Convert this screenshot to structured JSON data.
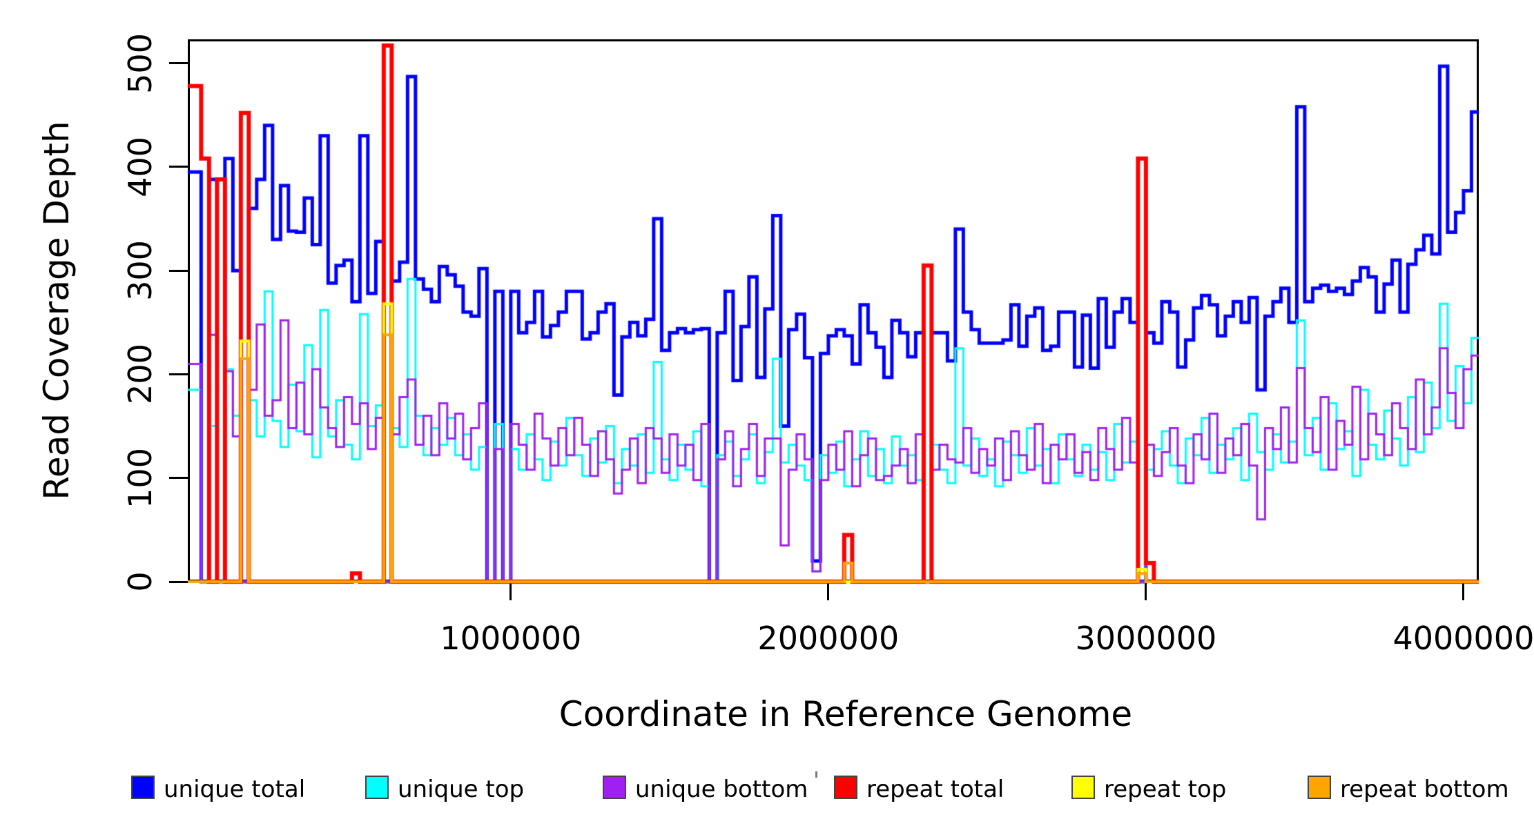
{
  "figure": {
    "y_axis": {
      "title": "Read Coverage Depth",
      "tick_labels": [
        "0",
        "100",
        "200",
        "300",
        "400",
        "500"
      ],
      "tick_values": [
        0,
        100,
        200,
        300,
        400,
        500
      ]
    },
    "x_axis": {
      "title": "Coordinate in Reference Genome",
      "tick_labels": [
        "1000000",
        "2000000",
        "3000000",
        "4000000"
      ],
      "tick_values": [
        1000000,
        2000000,
        3000000,
        4000000
      ]
    },
    "legend": {
      "items": [
        {
          "label": "unique total",
          "color": "#0000FF"
        },
        {
          "label": "unique top",
          "color": "#00FFFF"
        },
        {
          "label": "unique bottom",
          "color": "#A020F0"
        },
        {
          "label": "repeat total",
          "color": "#FF0000"
        },
        {
          "label": "repeat top",
          "color": "#FFFF00"
        },
        {
          "label": "repeat bottom",
          "color": "#FFA500"
        }
      ]
    }
  },
  "chart_data": {
    "type": "line",
    "subtype": "step",
    "title": "",
    "xlabel": "Coordinate in Reference Genome",
    "ylabel": "Read Coverage Depth",
    "xlim": [
      -17000,
      4048000
    ],
    "ylim": [
      0,
      523
    ],
    "grid": false,
    "legend_position": "bottom",
    "x_start": 0,
    "x_bin_size": 25000,
    "x_unit": "bp",
    "series": [
      {
        "name": "unique total",
        "color": "#0000FF",
        "linewidth": 5,
        "values": [
          395,
          0,
          388,
          0,
          408,
          300,
          0,
          360,
          388,
          440,
          330,
          382,
          338,
          337,
          370,
          325,
          430,
          288,
          305,
          310,
          270,
          430,
          278,
          328,
          0,
          290,
          308,
          487,
          292,
          282,
          270,
          304,
          296,
          285,
          260,
          256,
          302,
          0,
          280,
          0,
          280,
          240,
          250,
          280,
          236,
          247,
          260,
          280,
          280,
          234,
          240,
          260,
          268,
          180,
          236,
          250,
          237,
          253,
          350,
          223,
          240,
          244,
          240,
          243,
          244,
          0,
          240,
          280,
          194,
          246,
          294,
          197,
          263,
          353,
          150,
          243,
          258,
          216,
          20,
          220,
          237,
          243,
          237,
          210,
          267,
          240,
          226,
          197,
          252,
          240,
          217,
          240,
          0,
          240,
          240,
          213,
          340,
          260,
          243,
          230,
          230,
          230,
          233,
          267,
          227,
          256,
          264,
          223,
          227,
          260,
          260,
          207,
          257,
          206,
          273,
          226,
          260,
          273,
          250,
          0,
          240,
          230,
          270,
          260,
          207,
          233,
          264,
          276,
          267,
          237,
          256,
          270,
          250,
          274,
          185,
          256,
          270,
          283,
          250,
          458,
          270,
          283,
          286,
          280,
          283,
          277,
          290,
          303,
          294,
          260,
          287,
          310,
          260,
          306,
          320,
          334,
          316,
          497,
          337,
          356,
          377,
          453
        ]
      },
      {
        "name": "unique top",
        "color": "#00FFFF",
        "linewidth": 3,
        "values": [
          185,
          0,
          150,
          0,
          205,
          160,
          0,
          175,
          140,
          280,
          155,
          130,
          190,
          145,
          228,
          120,
          262,
          140,
          175,
          132,
          118,
          258,
          150,
          170,
          0,
          148,
          130,
          292,
          160,
          122,
          148,
          132,
          158,
          122,
          142,
          108,
          130,
          0,
          152,
          0,
          128,
          108,
          142,
          118,
          98,
          135,
          112,
          158,
          122,
          102,
          138,
          115,
          150,
          95,
          128,
          112,
          142,
          105,
          212,
          118,
          98,
          132,
          108,
          145,
          92,
          0,
          122,
          135,
          102,
          118,
          142,
          95,
          125,
          215,
          115,
          132,
          112,
          98,
          10,
          122,
          105,
          135,
          92,
          118,
          145,
          102,
          128,
          95,
          140,
          112,
          122,
          98,
          0,
          132,
          108,
          95,
          225,
          112,
          138,
          102,
          118,
          92,
          135,
          122,
          105,
          148,
          112,
          128,
          95,
          142,
          118,
          102,
          132,
          108,
          125,
          98,
          152,
          115,
          135,
          0,
          108,
          128,
          145,
          112,
          95,
          138,
          122,
          158,
          105,
          132,
          118,
          148,
          98,
          162,
          125,
          108,
          142,
          115,
          135,
          252,
          122,
          158,
          108,
          172,
          128,
          145,
          102,
          185,
          132,
          118,
          165,
          138,
          112,
          178,
          125,
          192,
          148,
          268,
          155,
          208,
          172,
          235
        ]
      },
      {
        "name": "unique bottom",
        "color": "#A020F0",
        "linewidth": 3,
        "values": [
          210,
          0,
          238,
          0,
          203,
          140,
          0,
          185,
          248,
          160,
          175,
          252,
          148,
          192,
          142,
          205,
          168,
          148,
          130,
          178,
          152,
          172,
          128,
          158,
          0,
          142,
          178,
          195,
          132,
          160,
          122,
          172,
          138,
          162,
          118,
          148,
          172,
          0,
          128,
          0,
          152,
          132,
          108,
          162,
          138,
          112,
          148,
          122,
          158,
          132,
          102,
          145,
          118,
          85,
          108,
          138,
          95,
          148,
          138,
          105,
          142,
          112,
          132,
          98,
          152,
          0,
          118,
          145,
          92,
          128,
          152,
          102,
          138,
          138,
          35,
          108,
          142,
          118,
          10,
          98,
          132,
          108,
          145,
          92,
          122,
          138,
          98,
          102,
          112,
          128,
          95,
          142,
          0,
          108,
          132,
          118,
          115,
          148,
          105,
          128,
          112,
          138,
          98,
          145,
          122,
          108,
          152,
          95,
          132,
          118,
          142,
          105,
          125,
          98,
          148,
          128,
          108,
          158,
          115,
          0,
          132,
          102,
          125,
          148,
          112,
          95,
          142,
          118,
          162,
          105,
          138,
          122,
          152,
          112,
          60,
          148,
          128,
          168,
          115,
          206,
          148,
          125,
          178,
          108,
          155,
          132,
          188,
          118,
          162,
          142,
          122,
          172,
          148,
          128,
          195,
          142,
          168,
          225,
          182,
          148,
          205,
          218
        ]
      },
      {
        "name": "repeat total",
        "color": "#FF0000",
        "linewidth": 6,
        "values": [
          478,
          408,
          0,
          388,
          0,
          0,
          452,
          0,
          0,
          0,
          0,
          0,
          0,
          0,
          0,
          0,
          0,
          0,
          0,
          0,
          8,
          0,
          0,
          0,
          517,
          0,
          0,
          0,
          0,
          0,
          0,
          0,
          0,
          0,
          0,
          0,
          0,
          0,
          0,
          0,
          0,
          0,
          0,
          0,
          0,
          0,
          0,
          0,
          0,
          0,
          0,
          0,
          0,
          0,
          0,
          0,
          0,
          0,
          0,
          0,
          0,
          0,
          0,
          0,
          0,
          0,
          0,
          0,
          0,
          0,
          0,
          0,
          0,
          0,
          0,
          0,
          0,
          0,
          0,
          0,
          0,
          0,
          45,
          0,
          0,
          0,
          0,
          0,
          0,
          0,
          0,
          0,
          305,
          0,
          0,
          0,
          0,
          0,
          0,
          0,
          0,
          0,
          0,
          0,
          0,
          0,
          0,
          0,
          0,
          0,
          0,
          0,
          0,
          0,
          0,
          0,
          0,
          0,
          0,
          408,
          18,
          0,
          0,
          0,
          0,
          0,
          0,
          0,
          0,
          0,
          0,
          0,
          0,
          0,
          0,
          0,
          0,
          0,
          0,
          0,
          0,
          0,
          0,
          0,
          0,
          0,
          0,
          0,
          0,
          0,
          0,
          0,
          0,
          0,
          0,
          0,
          0,
          0,
          0,
          0,
          0,
          0
        ]
      },
      {
        "name": "repeat top",
        "color": "#FFFF00",
        "linewidth": 4,
        "values": [
          0,
          0,
          0,
          0,
          0,
          0,
          232,
          0,
          0,
          0,
          0,
          0,
          0,
          0,
          0,
          0,
          0,
          0,
          0,
          0,
          0,
          0,
          0,
          0,
          268,
          0,
          0,
          0,
          0,
          0,
          0,
          0,
          0,
          0,
          0,
          0,
          0,
          0,
          0,
          0,
          0,
          0,
          0,
          0,
          0,
          0,
          0,
          0,
          0,
          0,
          0,
          0,
          0,
          0,
          0,
          0,
          0,
          0,
          0,
          0,
          0,
          0,
          0,
          0,
          0,
          0,
          0,
          0,
          0,
          0,
          0,
          0,
          0,
          0,
          0,
          0,
          0,
          0,
          0,
          0,
          0,
          0,
          0,
          0,
          0,
          0,
          0,
          0,
          0,
          0,
          0,
          0,
          0,
          0,
          0,
          0,
          0,
          0,
          0,
          0,
          0,
          0,
          0,
          0,
          0,
          0,
          0,
          0,
          0,
          0,
          0,
          0,
          0,
          0,
          0,
          0,
          0,
          0,
          0,
          12,
          0,
          0,
          0,
          0,
          0,
          0,
          0,
          0,
          0,
          0,
          0,
          0,
          0,
          0,
          0,
          0,
          0,
          0,
          0,
          0,
          0,
          0,
          0,
          0,
          0,
          0,
          0,
          0,
          0,
          0,
          0,
          0,
          0,
          0,
          0,
          0,
          0,
          0,
          0,
          0,
          0,
          0
        ]
      },
      {
        "name": "repeat bottom",
        "color": "#FFA500",
        "linewidth": 4,
        "values": [
          0,
          0,
          0,
          0,
          0,
          0,
          215,
          0,
          0,
          0,
          0,
          0,
          0,
          0,
          0,
          0,
          0,
          0,
          0,
          0,
          0,
          0,
          0,
          0,
          238,
          0,
          0,
          0,
          0,
          0,
          0,
          0,
          0,
          0,
          0,
          0,
          0,
          0,
          0,
          0,
          0,
          0,
          0,
          0,
          0,
          0,
          0,
          0,
          0,
          0,
          0,
          0,
          0,
          0,
          0,
          0,
          0,
          0,
          0,
          0,
          0,
          0,
          0,
          0,
          0,
          0,
          0,
          0,
          0,
          0,
          0,
          0,
          0,
          0,
          0,
          0,
          0,
          0,
          0,
          0,
          0,
          0,
          18,
          0,
          0,
          0,
          0,
          0,
          0,
          0,
          0,
          0,
          0,
          0,
          0,
          0,
          0,
          0,
          0,
          0,
          0,
          0,
          0,
          0,
          0,
          0,
          0,
          0,
          0,
          0,
          0,
          0,
          0,
          0,
          0,
          0,
          0,
          0,
          0,
          8,
          0,
          0,
          0,
          0,
          0,
          0,
          0,
          0,
          0,
          0,
          0,
          0,
          0,
          0,
          0,
          0,
          0,
          0,
          0,
          0,
          0,
          0,
          0,
          0,
          0,
          0,
          0,
          0,
          0,
          0,
          0,
          0,
          0,
          0,
          0,
          0,
          0,
          0,
          0,
          0,
          0,
          0
        ]
      }
    ]
  }
}
